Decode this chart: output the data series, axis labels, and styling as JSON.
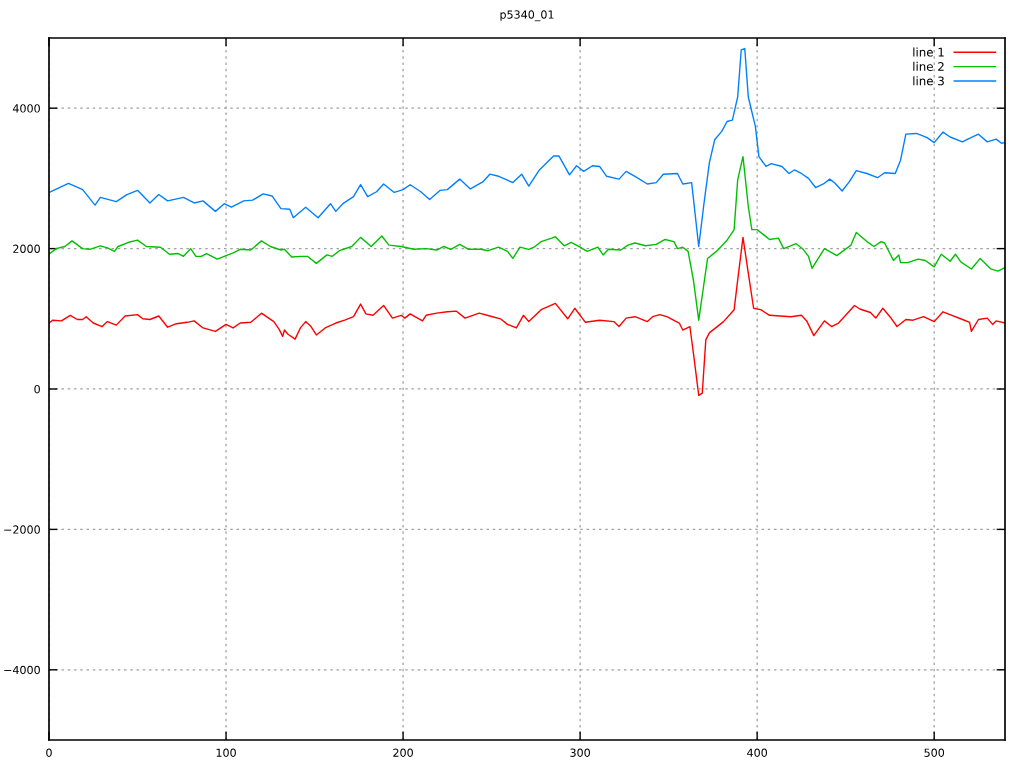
{
  "chart_data": {
    "type": "line",
    "title": "p5340_01",
    "xlim": [
      0,
      540
    ],
    "xticks": [
      0,
      100,
      200,
      300,
      400,
      500
    ],
    "ylim": [
      -5000,
      5000
    ],
    "yticks": [
      -4000,
      -2000,
      0,
      2000,
      4000
    ],
    "grid": true,
    "legend": "top right",
    "marker": "none",
    "line_style": "solid",
    "series": [
      {
        "name": "line 1",
        "color": "#ff0000",
        "x": [
          0,
          2,
          7,
          12,
          16,
          19,
          21,
          25,
          30,
          33,
          38,
          43,
          50,
          53,
          57,
          62,
          67,
          72,
          78,
          82,
          87,
          94,
          100,
          104,
          108,
          114,
          120,
          127,
          130,
          132,
          133,
          135,
          139,
          142,
          145,
          148,
          151,
          156,
          162,
          167,
          172,
          176,
          179,
          183,
          189,
          194,
          199,
          201,
          204,
          211,
          213,
          219,
          225,
          230,
          235,
          243,
          249,
          255,
          259,
          264,
          268,
          271,
          278,
          286,
          293,
          297,
          303,
          311,
          319,
          322,
          326,
          331,
          338,
          341,
          345,
          349,
          356,
          358,
          362,
          364,
          367,
          369,
          371,
          373,
          381,
          387,
          389,
          392,
          395,
          398,
          402,
          407,
          413,
          419,
          425,
          428,
          432,
          438,
          442,
          446,
          451,
          455,
          458,
          464,
          467,
          471,
          475,
          479,
          484,
          488,
          494,
          500,
          505,
          510,
          516,
          520,
          521,
          525,
          530,
          533,
          535,
          540
        ],
        "values": [
          940,
          980,
          970,
          1050,
          990,
          990,
          1030,
          940,
          890,
          960,
          910,
          1040,
          1060,
          1000,
          990,
          1040,
          880,
          930,
          950,
          970,
          870,
          820,
          920,
          870,
          940,
          950,
          1080,
          960,
          850,
          750,
          840,
          780,
          710,
          870,
          960,
          890,
          770,
          870,
          940,
          980,
          1030,
          1210,
          1070,
          1050,
          1190,
          1010,
          1050,
          1010,
          1070,
          970,
          1050,
          1080,
          1100,
          1110,
          1010,
          1080,
          1040,
          1000,
          920,
          870,
          1050,
          960,
          1130,
          1220,
          1000,
          1150,
          950,
          980,
          960,
          890,
          1010,
          1030,
          960,
          1030,
          1060,
          1030,
          940,
          840,
          890,
          510,
          -90,
          -60,
          700,
          800,
          960,
          1130,
          1550,
          2160,
          1650,
          1150,
          1130,
          1050,
          1040,
          1030,
          1050,
          970,
          760,
          970,
          890,
          940,
          1080,
          1190,
          1140,
          1090,
          1010,
          1150,
          1030,
          890,
          990,
          980,
          1030,
          960,
          1100,
          1050,
          990,
          950,
          820,
          990,
          1010,
          920,
          970,
          940
        ]
      },
      {
        "name": "line 2",
        "color": "#00c000",
        "x": [
          0,
          4,
          9,
          13,
          19,
          23,
          29,
          33,
          37,
          39,
          45,
          50,
          55,
          63,
          68,
          73,
          76,
          80,
          83,
          86,
          89,
          95,
          99,
          104,
          108,
          114,
          120,
          125,
          131,
          133,
          136,
          137,
          142,
          146,
          151,
          157,
          160,
          164,
          171,
          176,
          182,
          188,
          192,
          199,
          206,
          213,
          219,
          223,
          227,
          232,
          237,
          244,
          248,
          254,
          259,
          262,
          266,
          271,
          274,
          278,
          284,
          286,
          291,
          295,
          300,
          304,
          310,
          313,
          316,
          323,
          327,
          331,
          337,
          343,
          348,
          353,
          355,
          358,
          361,
          364,
          367,
          370,
          372,
          377,
          383,
          387,
          389,
          392,
          395,
          397,
          400,
          405,
          407,
          412,
          415,
          422,
          426,
          429,
          431,
          434,
          438,
          445,
          453,
          456,
          462,
          466,
          470,
          472,
          477,
          480,
          481,
          485,
          491,
          495,
          500,
          504,
          509,
          512,
          515,
          521,
          526,
          532,
          536,
          540
        ],
        "values": [
          1920,
          2000,
          2030,
          2110,
          2000,
          1990,
          2040,
          2010,
          1960,
          2030,
          2090,
          2120,
          2030,
          2020,
          1920,
          1930,
          1890,
          2000,
          1890,
          1890,
          1930,
          1850,
          1890,
          1940,
          1990,
          1980,
          2110,
          2030,
          1980,
          1990,
          1910,
          1880,
          1890,
          1890,
          1790,
          1910,
          1890,
          1970,
          2030,
          2160,
          2030,
          2180,
          2050,
          2030,
          1990,
          2000,
          1980,
          2030,
          1990,
          2060,
          1990,
          1990,
          1970,
          2020,
          1960,
          1860,
          2020,
          1990,
          2020,
          2100,
          2150,
          2170,
          2040,
          2090,
          2020,
          1960,
          2020,
          1910,
          1990,
          1980,
          2050,
          2080,
          2040,
          2060,
          2130,
          2100,
          2000,
          2020,
          1960,
          1550,
          980,
          1510,
          1860,
          1960,
          2120,
          2270,
          2980,
          3310,
          2600,
          2270,
          2270,
          2170,
          2130,
          2150,
          2000,
          2070,
          1990,
          1890,
          1720,
          1840,
          2000,
          1900,
          2050,
          2230,
          2100,
          2030,
          2100,
          2080,
          1830,
          1910,
          1800,
          1800,
          1850,
          1830,
          1740,
          1920,
          1820,
          1920,
          1810,
          1710,
          1860,
          1710,
          1680,
          1730
        ]
      },
      {
        "name": "line 3",
        "color": "#0080ff",
        "x": [
          0,
          11,
          19,
          26,
          29,
          38,
          44,
          50,
          57,
          62,
          67,
          76,
          82,
          87,
          94,
          99,
          103,
          110,
          115,
          121,
          126,
          131,
          136,
          138,
          145,
          152,
          159,
          162,
          166,
          172,
          176,
          180,
          185,
          189,
          195,
          200,
          204,
          210,
          215,
          221,
          225,
          232,
          238,
          245,
          249,
          254,
          262,
          267,
          271,
          277,
          285,
          288,
          294,
          298,
          302,
          307,
          311,
          315,
          322,
          326,
          331,
          338,
          343,
          347,
          355,
          358,
          363,
          367,
          370,
          373,
          376,
          380,
          383,
          386,
          389,
          391,
          393,
          395,
          399,
          401,
          405,
          408,
          414,
          418,
          421,
          425,
          429,
          433,
          438,
          441,
          444,
          448,
          452,
          456,
          462,
          468,
          472,
          478,
          481,
          484,
          490,
          496,
          500,
          505,
          509,
          516,
          519,
          525,
          530,
          535,
          538,
          540
        ],
        "values": [
          2800,
          2930,
          2840,
          2620,
          2730,
          2670,
          2770,
          2830,
          2650,
          2770,
          2680,
          2730,
          2650,
          2680,
          2530,
          2640,
          2590,
          2680,
          2690,
          2780,
          2750,
          2570,
          2560,
          2440,
          2590,
          2440,
          2640,
          2530,
          2640,
          2740,
          2910,
          2740,
          2810,
          2920,
          2800,
          2840,
          2910,
          2810,
          2700,
          2830,
          2840,
          2990,
          2850,
          2950,
          3060,
          3030,
          2940,
          3060,
          2890,
          3120,
          3320,
          3320,
          3050,
          3180,
          3100,
          3180,
          3170,
          3030,
          2990,
          3100,
          3030,
          2920,
          2940,
          3060,
          3070,
          2920,
          2940,
          2030,
          2650,
          3220,
          3550,
          3670,
          3810,
          3830,
          4160,
          4830,
          4850,
          4160,
          3740,
          3310,
          3170,
          3210,
          3170,
          3070,
          3120,
          3070,
          3000,
          2870,
          2930,
          2990,
          2930,
          2820,
          2950,
          3110,
          3070,
          3010,
          3080,
          3070,
          3260,
          3630,
          3640,
          3580,
          3510,
          3660,
          3590,
          3520,
          3560,
          3630,
          3520,
          3560,
          3500,
          3510
        ]
      }
    ]
  }
}
